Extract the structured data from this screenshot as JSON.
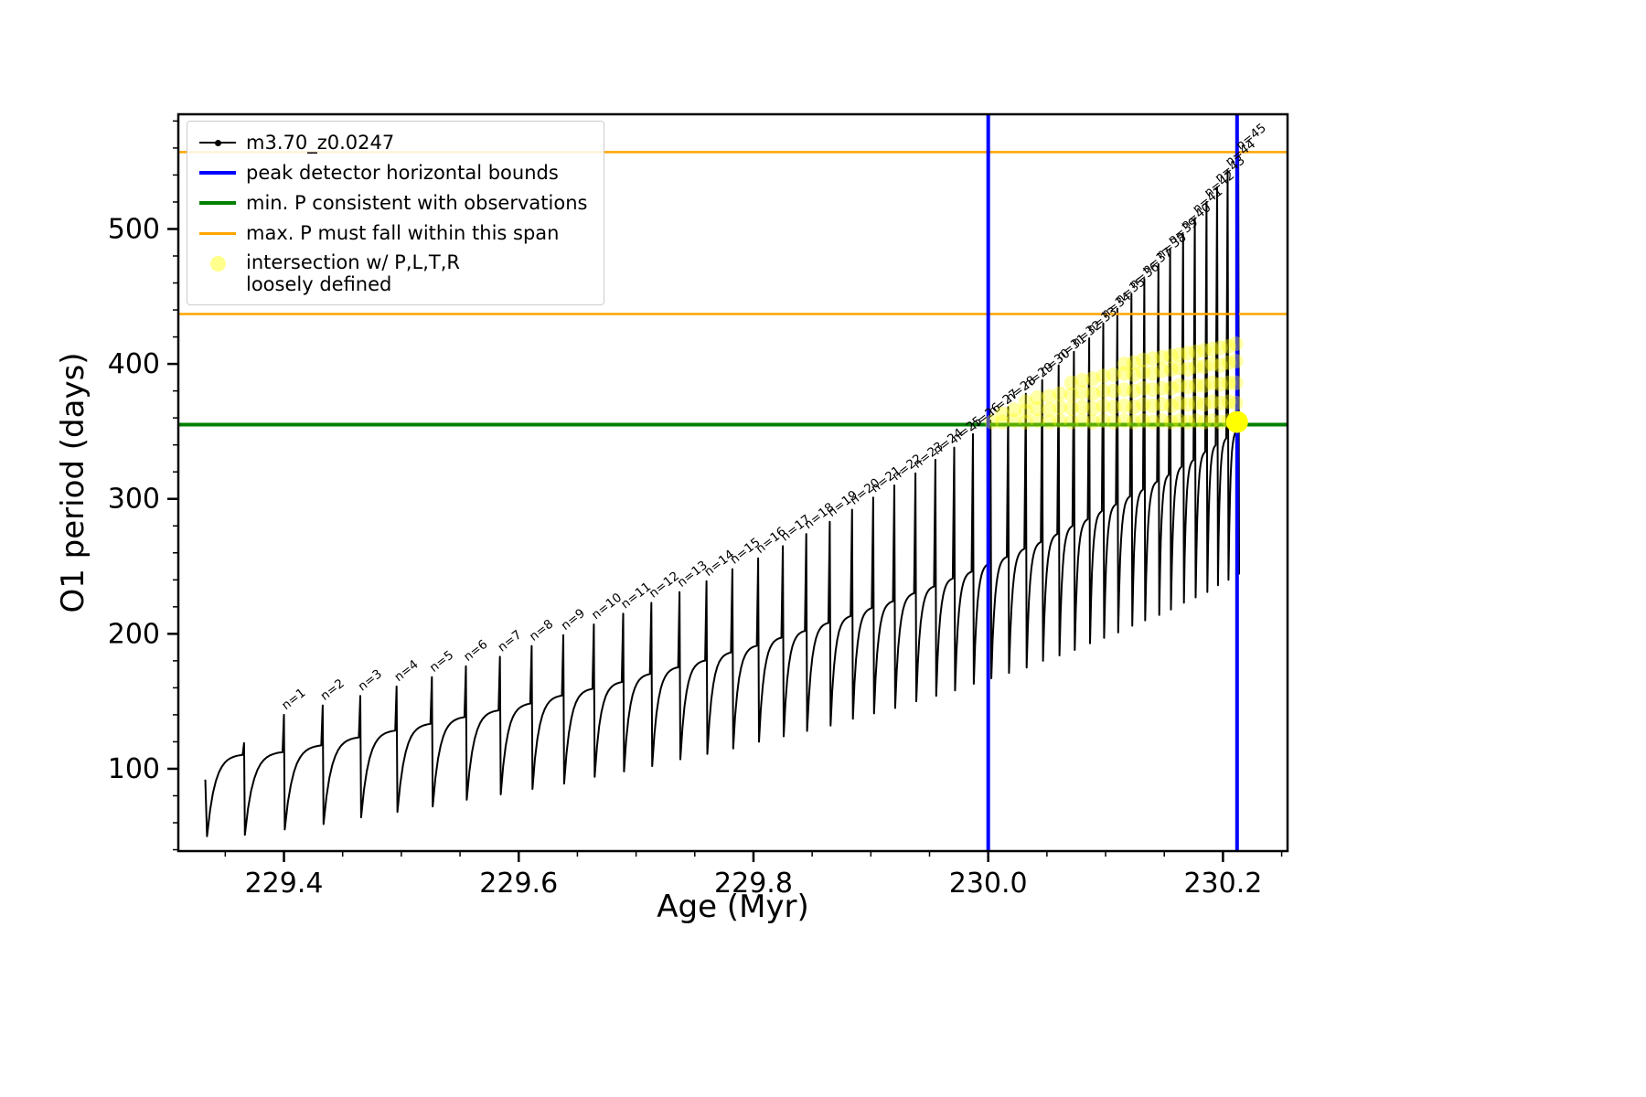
{
  "legend": {
    "entries": [
      {
        "label": "m3.70_z0.0247",
        "type": "line-dot",
        "color": "#000000"
      },
      {
        "label": "peak detector horizontal bounds",
        "type": "line",
        "color": "#0000ff"
      },
      {
        "label": "min. P consistent with observations",
        "type": "line",
        "color": "#008000"
      },
      {
        "label": "max. P must fall within this span",
        "type": "line",
        "color": "#ffa500"
      },
      {
        "label": "intersection w/ P,L,T,R",
        "label2": "loosely defined",
        "type": "dot",
        "color": "#ffff00"
      }
    ]
  },
  "chart_data": {
    "type": "line",
    "title": "",
    "xlabel": "Age (Myr)",
    "ylabel": "O1 period (days)",
    "xlim": [
      229.31,
      230.255
    ],
    "ylim": [
      39,
      585
    ],
    "xticks": [
      {
        "v": 229.4,
        "label": "229.4"
      },
      {
        "v": 229.6,
        "label": "229.6"
      },
      {
        "v": 229.8,
        "label": "229.8"
      },
      {
        "v": 230.0,
        "label": "230.0"
      },
      {
        "v": 230.2,
        "label": "230.2"
      }
    ],
    "yticks": [
      {
        "v": 100,
        "label": "100"
      },
      {
        "v": 200,
        "label": "200"
      },
      {
        "v": 300,
        "label": "300"
      },
      {
        "v": 400,
        "label": "400"
      },
      {
        "v": 500,
        "label": "500"
      }
    ],
    "x_minor_step": 0.05,
    "y_minor_step": 20,
    "series": {
      "name": "m3.70_z0.0247",
      "color": "#000000",
      "start": {
        "age": 229.333,
        "y": 92,
        "drop_to": 50
      },
      "teeth": [
        {
          "n": 0,
          "label": "",
          "age": 229.366,
          "peak": 119,
          "body": 111,
          "dip": 51
        },
        {
          "n": 1,
          "label": "n=1",
          "age": 229.4,
          "peak": 140,
          "body": 113,
          "dip": 55
        },
        {
          "n": 2,
          "label": "n=2",
          "age": 229.433,
          "peak": 147,
          "body": 118,
          "dip": 59
        },
        {
          "n": 3,
          "label": "n=3",
          "age": 229.465,
          "peak": 154,
          "body": 124,
          "dip": 64
        },
        {
          "n": 4,
          "label": "n=4",
          "age": 229.496,
          "peak": 161,
          "body": 129,
          "dip": 68
        },
        {
          "n": 5,
          "label": "n=5",
          "age": 229.526,
          "peak": 168,
          "body": 134,
          "dip": 72
        },
        {
          "n": 6,
          "label": "n=6",
          "age": 229.555,
          "peak": 176,
          "body": 139,
          "dip": 77
        },
        {
          "n": 7,
          "label": "n=7",
          "age": 229.584,
          "peak": 183,
          "body": 144,
          "dip": 81
        },
        {
          "n": 8,
          "label": "n=8",
          "age": 229.611,
          "peak": 191,
          "body": 149,
          "dip": 85
        },
        {
          "n": 9,
          "label": "n=9",
          "age": 229.638,
          "peak": 199,
          "body": 155,
          "dip": 89
        },
        {
          "n": 10,
          "label": "n=10",
          "age": 229.664,
          "peak": 207,
          "body": 160,
          "dip": 94
        },
        {
          "n": 11,
          "label": "n=11",
          "age": 229.689,
          "peak": 215,
          "body": 165,
          "dip": 98
        },
        {
          "n": 12,
          "label": "n=12",
          "age": 229.713,
          "peak": 223,
          "body": 171,
          "dip": 102
        },
        {
          "n": 13,
          "label": "n=13",
          "age": 229.737,
          "peak": 231,
          "body": 176,
          "dip": 107
        },
        {
          "n": 14,
          "label": "n=14",
          "age": 229.76,
          "peak": 239,
          "body": 181,
          "dip": 111
        },
        {
          "n": 15,
          "label": "n=15",
          "age": 229.782,
          "peak": 248,
          "body": 187,
          "dip": 115
        },
        {
          "n": 16,
          "label": "n=16",
          "age": 229.804,
          "peak": 256,
          "body": 192,
          "dip": 120
        },
        {
          "n": 17,
          "label": "n=17",
          "age": 229.825,
          "peak": 265,
          "body": 198,
          "dip": 124
        },
        {
          "n": 18,
          "label": "n=18",
          "age": 229.845,
          "peak": 274,
          "body": 203,
          "dip": 128
        },
        {
          "n": 19,
          "label": "n=19",
          "age": 229.865,
          "peak": 283,
          "body": 209,
          "dip": 132
        },
        {
          "n": 20,
          "label": "n=20",
          "age": 229.884,
          "peak": 292,
          "body": 214,
          "dip": 137
        },
        {
          "n": 21,
          "label": "n=21",
          "age": 229.902,
          "peak": 301,
          "body": 220,
          "dip": 141
        },
        {
          "n": 22,
          "label": "n=22",
          "age": 229.92,
          "peak": 310,
          "body": 225,
          "dip": 145
        },
        {
          "n": 23,
          "label": "n=23",
          "age": 229.938,
          "peak": 319,
          "body": 231,
          "dip": 150
        },
        {
          "n": 24,
          "label": "n=24",
          "age": 229.955,
          "peak": 329,
          "body": 236,
          "dip": 154
        },
        {
          "n": 25,
          "label": "n=25",
          "age": 229.971,
          "peak": 338,
          "body": 242,
          "dip": 158
        },
        {
          "n": 26,
          "label": "n=26",
          "age": 229.987,
          "peak": 348,
          "body": 247,
          "dip": 163
        },
        {
          "n": 27,
          "label": "n=27",
          "age": 230.002,
          "peak": 358,
          "body": 253,
          "dip": 167
        },
        {
          "n": 28,
          "label": "n=28",
          "age": 230.017,
          "peak": 368,
          "body": 258,
          "dip": 171
        },
        {
          "n": 29,
          "label": "n=29",
          "age": 230.032,
          "peak": 378,
          "body": 264,
          "dip": 175
        },
        {
          "n": 30,
          "label": "n=30",
          "age": 230.046,
          "peak": 388,
          "body": 269,
          "dip": 180
        },
        {
          "n": 31,
          "label": "n=31",
          "age": 230.06,
          "peak": 399,
          "body": 275,
          "dip": 184
        },
        {
          "n": 32,
          "label": "n=32",
          "age": 230.073,
          "peak": 409,
          "body": 281,
          "dip": 188
        },
        {
          "n": 33,
          "label": "n=33",
          "age": 230.086,
          "peak": 419,
          "body": 286,
          "dip": 193
        },
        {
          "n": 34,
          "label": "n=34",
          "age": 230.098,
          "peak": 430,
          "body": 292,
          "dip": 197
        },
        {
          "n": 35,
          "label": "n=35",
          "age": 230.11,
          "peak": 441,
          "body": 297,
          "dip": 201
        },
        {
          "n": 36,
          "label": "n=36",
          "age": 230.122,
          "peak": 452,
          "body": 303,
          "dip": 206
        },
        {
          "n": 37,
          "label": "n=37",
          "age": 230.133,
          "peak": 463,
          "body": 308,
          "dip": 210
        },
        {
          "n": 38,
          "label": "n=38",
          "age": 230.145,
          "peak": 474,
          "body": 314,
          "dip": 214
        },
        {
          "n": 39,
          "label": "n=39",
          "age": 230.155,
          "peak": 485,
          "body": 319,
          "dip": 218
        },
        {
          "n": 40,
          "label": "n=40",
          "age": 230.166,
          "peak": 496,
          "body": 325,
          "dip": 223
        },
        {
          "n": 41,
          "label": "n=41",
          "age": 230.176,
          "peak": 508,
          "body": 330,
          "dip": 227
        },
        {
          "n": 42,
          "label": "n=42",
          "age": 230.186,
          "peak": 520,
          "body": 336,
          "dip": 231
        },
        {
          "n": 43,
          "label": "n=43",
          "age": 230.195,
          "peak": 531,
          "body": 341,
          "dip": 236
        },
        {
          "n": 44,
          "label": "n=44",
          "age": 230.204,
          "peak": 543,
          "body": 346,
          "dip": 240
        },
        {
          "n": 45,
          "label": "n=45",
          "age": 230.213,
          "peak": 555,
          "body": 352,
          "dip": 244
        }
      ]
    },
    "peak_bounds": {
      "label": "peak detector horizontal bounds",
      "color": "#0000ff",
      "x": [
        230.0,
        230.212
      ]
    },
    "min_p_line": {
      "label": "min. P consistent with observations",
      "color": "#008000",
      "y": 355
    },
    "max_p_span": {
      "label": "max. P must fall within this span",
      "color": "#ffa500",
      "y": [
        437,
        557
      ]
    },
    "intersection": {
      "label": "intersection w/ P,L,T,R loosely defined",
      "color": "#ffff00",
      "alpha": 0.35,
      "big_point": {
        "x": 230.212,
        "y": 357
      },
      "columns": [
        {
          "x": 230.003,
          "ys": [
            357
          ]
        },
        {
          "x": 230.012,
          "ys": [
            357,
            363
          ]
        },
        {
          "x": 230.022,
          "ys": [
            358,
            366
          ]
        },
        {
          "x": 230.032,
          "ys": [
            357,
            365,
            372
          ]
        },
        {
          "x": 230.042,
          "ys": [
            358,
            367,
            375
          ]
        },
        {
          "x": 230.052,
          "ys": [
            357,
            366,
            376
          ]
        },
        {
          "x": 230.061,
          "ys": [
            358,
            368,
            378
          ]
        },
        {
          "x": 230.071,
          "ys": [
            357,
            367,
            377,
            386
          ]
        },
        {
          "x": 230.08,
          "ys": [
            358,
            368,
            379,
            388
          ]
        },
        {
          "x": 230.089,
          "ys": [
            357,
            367,
            378,
            389
          ]
        },
        {
          "x": 230.098,
          "ys": [
            358,
            369,
            380,
            391
          ]
        },
        {
          "x": 230.107,
          "ys": [
            357,
            368,
            380,
            392
          ]
        },
        {
          "x": 230.116,
          "ys": [
            358,
            369,
            381,
            393,
            400
          ]
        },
        {
          "x": 230.124,
          "ys": [
            357,
            368,
            380,
            392,
            401
          ]
        },
        {
          "x": 230.132,
          "ys": [
            358,
            370,
            382,
            394,
            403
          ]
        },
        {
          "x": 230.14,
          "ys": [
            357,
            369,
            381,
            393,
            404
          ]
        },
        {
          "x": 230.148,
          "ys": [
            358,
            370,
            382,
            395,
            405
          ]
        },
        {
          "x": 230.156,
          "ys": [
            357,
            369,
            382,
            396,
            406
          ]
        },
        {
          "x": 230.163,
          "ys": [
            358,
            371,
            384,
            397,
            407
          ]
        },
        {
          "x": 230.17,
          "ys": [
            357,
            370,
            383,
            396,
            408
          ]
        },
        {
          "x": 230.177,
          "ys": [
            358,
            371,
            384,
            398,
            409
          ]
        },
        {
          "x": 230.184,
          "ys": [
            357,
            370,
            384,
            398,
            410
          ]
        },
        {
          "x": 230.191,
          "ys": [
            358,
            372,
            386,
            400,
            411
          ]
        },
        {
          "x": 230.198,
          "ys": [
            357,
            371,
            385,
            399,
            412
          ]
        },
        {
          "x": 230.205,
          "ys": [
            358,
            372,
            386,
            401,
            413
          ]
        },
        {
          "x": 230.211,
          "ys": [
            357,
            371,
            386,
            402,
            415
          ]
        }
      ]
    }
  }
}
